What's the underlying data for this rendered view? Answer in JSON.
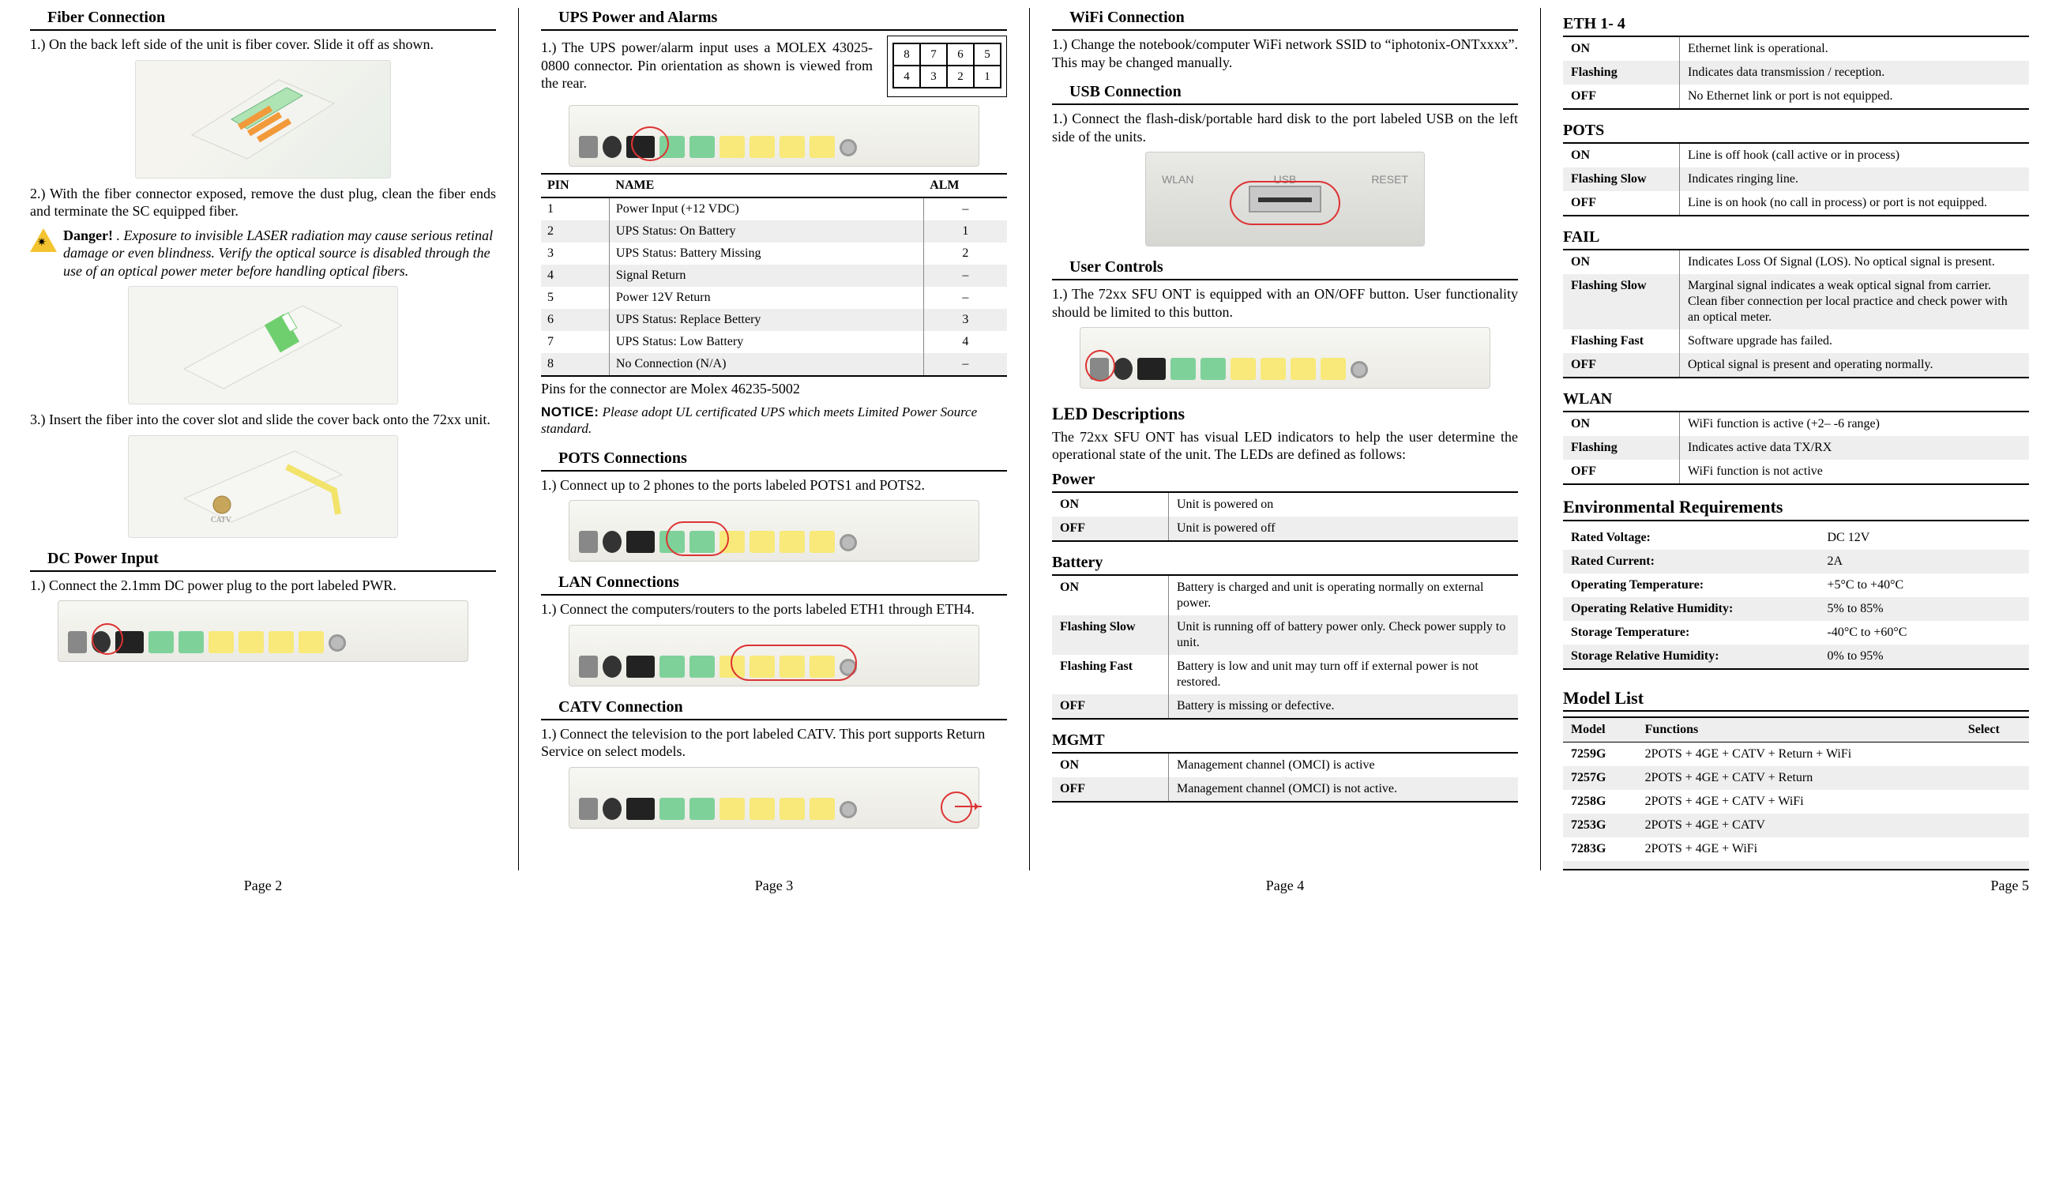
{
  "page2": {
    "sections": {
      "fiber": {
        "title": "Fiber Connection",
        "p1": "1.) On the back left side of the unit is fiber cover. Slide it off as shown.",
        "p2": "2.) With the fiber connector exposed, remove the dust plug, clean the fiber ends and terminate the SC equipped fiber.",
        "danger_label": "Danger!",
        "danger_body": " . Exposure to invisible LASER radiation may cause serious retinal damage or even blindness. Verify the optical source is disabled through the use of an optical power meter before handling optical fibers.",
        "p3": "3.) Insert the fiber into the cover slot and slide the cover back onto the 72xx unit."
      },
      "dc": {
        "title": "DC Power Input",
        "p1": "1.) Connect the 2.1mm DC power plug to the port labeled PWR."
      }
    },
    "page_label": "Page 2"
  },
  "page3": {
    "ups": {
      "title": "UPS Power and Alarms",
      "intro": "1.) The UPS power/alarm input uses a MOLEX 43025-0800 connector. Pin orientation as shown is viewed from the rear.",
      "pin_grid": [
        [
          "8",
          "7",
          "6",
          "5"
        ],
        [
          "4",
          "3",
          "2",
          "1"
        ]
      ],
      "table": {
        "headers": [
          "PIN",
          "NAME",
          "ALM"
        ],
        "rows": [
          [
            "1",
            "Power Input (+12 VDC)",
            "–"
          ],
          [
            "2",
            "UPS Status: On Battery",
            "1"
          ],
          [
            "3",
            "UPS Status: Battery Missing",
            "2"
          ],
          [
            "4",
            "Signal Return",
            "–"
          ],
          [
            "5",
            "Power 12V Return",
            "–"
          ],
          [
            "6",
            "UPS Status: Replace Bettery",
            "3"
          ],
          [
            "7",
            "UPS Status: Low Battery",
            "4"
          ],
          [
            "8",
            "No Connection (N/A)",
            "–"
          ]
        ]
      },
      "pins_note": "Pins for the connector are Molex 46235-5002",
      "notice_label": "NOTICE:",
      "notice_body": " Please adopt UL certificated UPS which meets Limited Power Source standard."
    },
    "pots": {
      "title": "POTS Connections",
      "p1": "1.) Connect up to 2 phones to the ports labeled POTS1 and POTS2."
    },
    "lan": {
      "title": "LAN Connections",
      "p1": "1.) Connect the computers/routers to the ports labeled ETH1 through ETH4."
    },
    "catv": {
      "title": "CATV Connection",
      "p1": "1.) Connect the television to the port labeled CATV. This port supports Return Service on select models."
    },
    "page_label": "Page 3"
  },
  "page4": {
    "wifi": {
      "title": "WiFi Connection",
      "p1": "1.) Change the notebook/computer WiFi network SSID to “iphotonix-ONTxxxx”. This may be changed manually."
    },
    "usb": {
      "title": "USB Connection",
      "p1": "1.) Connect the flash-disk/portable hard disk to the port labeled USB on the left side of the units.",
      "labels": {
        "wlan": "WLAN",
        "usb": "USB",
        "reset": "RESET"
      }
    },
    "controls": {
      "title": "User Controls",
      "p1": "1.) The 72xx SFU ONT is equipped with an ON/OFF button. User functionality should be limited to this button."
    },
    "led_heading": "LED Descriptions",
    "led_intro": "The 72xx SFU ONT has visual LED indicators to help the user determine the operational state of the unit. The LEDs are defined as follows:",
    "led_tables": {
      "power": {
        "title": "Power",
        "rows": [
          [
            "ON",
            "Unit is powered on"
          ],
          [
            "OFF",
            "Unit is powered off"
          ]
        ]
      },
      "battery": {
        "title": "Battery",
        "rows": [
          [
            "ON",
            "Battery is charged and unit is operating normally on external power."
          ],
          [
            "Flashing Slow",
            "Unit is running off of battery power only. Check power supply to unit."
          ],
          [
            "Flashing Fast",
            "Battery is low and unit may turn off if external power is not restored."
          ],
          [
            "OFF",
            "Battery is missing or defective."
          ]
        ]
      },
      "mgmt": {
        "title": "MGMT",
        "rows": [
          [
            "ON",
            "Management channel (OMCI) is active"
          ],
          [
            "OFF",
            "Management channel (OMCI) is not active."
          ]
        ]
      }
    },
    "page_label": "Page 4"
  },
  "page5": {
    "led_tables": {
      "eth": {
        "title": "ETH 1- 4",
        "rows": [
          [
            "ON",
            "Ethernet link is operational."
          ],
          [
            "Flashing",
            "Indicates data transmission / reception."
          ],
          [
            "OFF",
            "No Ethernet link or port is not equipped."
          ]
        ]
      },
      "pots": {
        "title": "POTS",
        "rows": [
          [
            "ON",
            "Line is off hook (call active or in process)"
          ],
          [
            "Flashing Slow",
            "Indicates ringing line."
          ],
          [
            "OFF",
            "Line is on hook (no call in process) or port is not equipped."
          ]
        ]
      },
      "fail": {
        "title": "FAIL",
        "rows": [
          [
            "ON",
            "Indicates Loss Of Signal (LOS). No optical signal is present."
          ],
          [
            "Flashing Slow",
            "Marginal signal indicates a weak optical signal from carrier. Clean fiber connection per local practice and check power with an optical meter."
          ],
          [
            "Flashing Fast",
            "Software upgrade has failed."
          ],
          [
            "OFF",
            "Optical signal is present and operating normally."
          ]
        ]
      },
      "wlan": {
        "title": "WLAN",
        "rows": [
          [
            "ON",
            "WiFi function is active (+2– -6 range)"
          ],
          [
            "Flashing",
            "Indicates active data TX/RX"
          ],
          [
            "OFF",
            "WiFi function is not active"
          ]
        ]
      }
    },
    "env": {
      "title": "Environmental Requirements",
      "rows": [
        [
          "Rated Voltage:",
          "DC 12V"
        ],
        [
          "Rated Current:",
          "2A"
        ],
        [
          "Operating Temperature:",
          "+5°C to +40°C"
        ],
        [
          "Operating Relative Humidity:",
          "5% to 85%"
        ],
        [
          "Storage Temperature:",
          "-40°C to +60°C"
        ],
        [
          "Storage Relative Humidity:",
          "0% to 95%"
        ]
      ]
    },
    "models": {
      "title": "Model List",
      "headers": [
        "Model",
        "Functions",
        "Select"
      ],
      "rows": [
        [
          "7259G",
          "2POTS + 4GE + CATV + Return + WiFi",
          ""
        ],
        [
          "7257G",
          "2POTS + 4GE + CATV + Return",
          ""
        ],
        [
          "7258G",
          "2POTS + 4GE + CATV + WiFi",
          ""
        ],
        [
          "7253G",
          "2POTS + 4GE + CATV",
          ""
        ],
        [
          "7283G",
          "2POTS + 4GE + WiFi",
          ""
        ],
        [
          "",
          "",
          ""
        ]
      ]
    },
    "page_label": "Page 5"
  }
}
